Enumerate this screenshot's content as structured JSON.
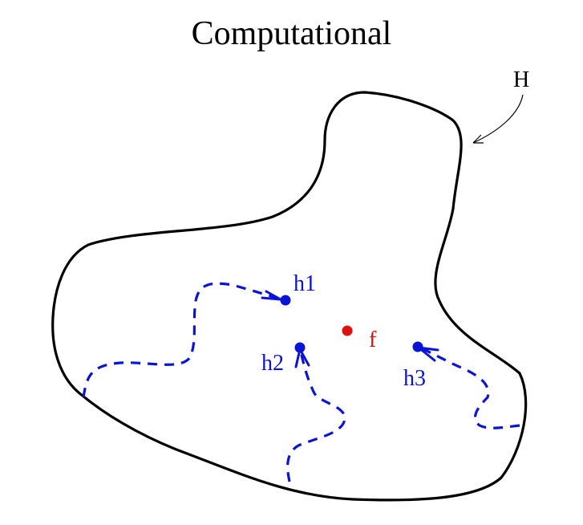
{
  "title": "Computational",
  "region_label": "H",
  "focus_label": "f",
  "points": [
    {
      "id": "h1",
      "label": "h1"
    },
    {
      "id": "h2",
      "label": "h2"
    },
    {
      "id": "h3",
      "label": "h3"
    }
  ],
  "colors": {
    "region": "#000000",
    "paths": "#0a14d6",
    "points": "#0a14d6",
    "focus": "#e01010"
  }
}
